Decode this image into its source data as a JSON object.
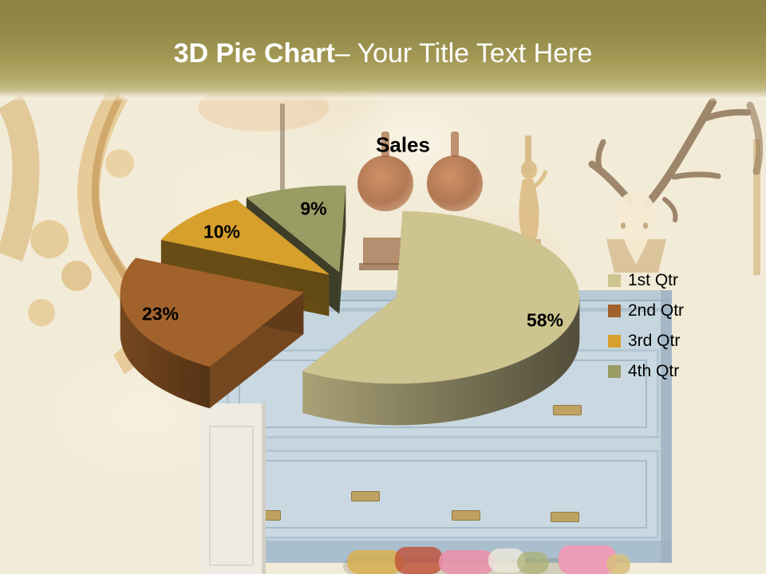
{
  "slide_title": {
    "bold": "3D Pie Chart",
    "rest": "– Your Title Text Here"
  },
  "chart_data": {
    "type": "pie",
    "style": "3d-exploded",
    "title": "Sales",
    "labels": [
      "1st Qtr",
      "2nd Qtr",
      "3rd Qtr",
      "4th Qtr"
    ],
    "values": [
      58,
      23,
      10,
      9
    ],
    "data_labels": [
      "58%",
      "23%",
      "10%",
      "9%"
    ],
    "colors": [
      "#cec490",
      "#a2622b",
      "#d7a02c",
      "#999c63"
    ],
    "legend": {
      "position": "right",
      "entries": [
        "1st Qtr",
        "2nd Qtr",
        "3rd Qtr",
        "4th Qtr"
      ]
    },
    "start_angle_deg": 0,
    "clockwise": true
  }
}
